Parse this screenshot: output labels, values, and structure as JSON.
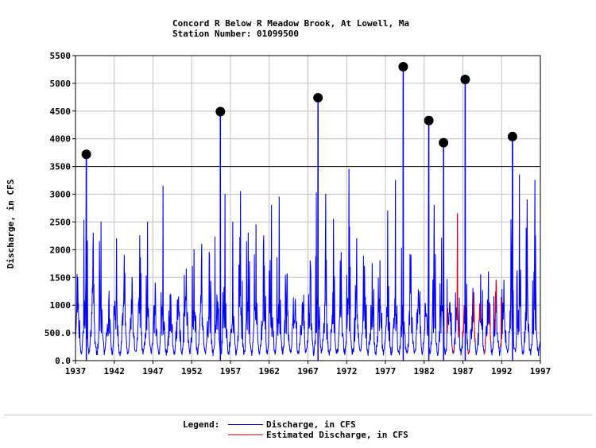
{
  "title": {
    "line1": "Concord R Below R Meadow Brook, At Lowell, Ma",
    "line2": "Station Number: 01099500"
  },
  "chart_data": {
    "type": "line",
    "xlabel": "",
    "ylabel": "Discharge, in CFS",
    "xlim": [
      1937,
      1997
    ],
    "ylim": [
      0,
      5500
    ],
    "x_ticks": [
      "1937",
      "1942",
      "1947",
      "1952",
      "1957",
      "1962",
      "1967",
      "1972",
      "1977",
      "1982",
      "1987",
      "1992",
      "1997"
    ],
    "y_ticks": [
      "0.0",
      "500.0",
      "1000",
      "1500",
      "2000",
      "2500",
      "3000",
      "3500",
      "4000",
      "4500",
      "5000",
      "5500"
    ],
    "grid": true,
    "reference_line": 3500,
    "peaks": [
      {
        "x": 1938.4,
        "y": 3720
      },
      {
        "x": 1955.7,
        "y": 4490
      },
      {
        "x": 1968.3,
        "y": 4740
      },
      {
        "x": 1979.3,
        "y": 5300
      },
      {
        "x": 1982.6,
        "y": 4330
      },
      {
        "x": 1984.5,
        "y": 3930
      },
      {
        "x": 1987.3,
        "y": 5070
      },
      {
        "x": 1993.4,
        "y": 4040
      }
    ],
    "annual_spikes": [
      {
        "x": 1937.3,
        "y": 1500
      },
      {
        "x": 1938.4,
        "y": 3720
      },
      {
        "x": 1939.3,
        "y": 2300
      },
      {
        "x": 1940.3,
        "y": 2500
      },
      {
        "x": 1941.3,
        "y": 1100
      },
      {
        "x": 1942.3,
        "y": 2200
      },
      {
        "x": 1943.3,
        "y": 1900
      },
      {
        "x": 1944.3,
        "y": 1500
      },
      {
        "x": 1945.3,
        "y": 2250
      },
      {
        "x": 1946.3,
        "y": 2500
      },
      {
        "x": 1947.3,
        "y": 1400
      },
      {
        "x": 1948.3,
        "y": 3150
      },
      {
        "x": 1949.3,
        "y": 1200
      },
      {
        "x": 1950.3,
        "y": 1150
      },
      {
        "x": 1951.3,
        "y": 1650
      },
      {
        "x": 1952.3,
        "y": 2000
      },
      {
        "x": 1953.3,
        "y": 2100
      },
      {
        "x": 1954.3,
        "y": 1900
      },
      {
        "x": 1955.7,
        "y": 4490
      },
      {
        "x": 1956.3,
        "y": 3000
      },
      {
        "x": 1957.3,
        "y": 2500
      },
      {
        "x": 1958.3,
        "y": 3050
      },
      {
        "x": 1959.3,
        "y": 2300
      },
      {
        "x": 1960.3,
        "y": 2450
      },
      {
        "x": 1961.3,
        "y": 2250
      },
      {
        "x": 1962.3,
        "y": 2800
      },
      {
        "x": 1963.3,
        "y": 2950
      },
      {
        "x": 1964.3,
        "y": 1550
      },
      {
        "x": 1965.3,
        "y": 700
      },
      {
        "x": 1966.3,
        "y": 1050
      },
      {
        "x": 1967.3,
        "y": 1800
      },
      {
        "x": 1968.3,
        "y": 4740
      },
      {
        "x": 1969.3,
        "y": 3000
      },
      {
        "x": 1970.3,
        "y": 2550
      },
      {
        "x": 1971.3,
        "y": 1950
      },
      {
        "x": 1972.3,
        "y": 3450
      },
      {
        "x": 1973.3,
        "y": 2200
      },
      {
        "x": 1974.3,
        "y": 1700
      },
      {
        "x": 1975.3,
        "y": 1750
      },
      {
        "x": 1976.3,
        "y": 1800
      },
      {
        "x": 1977.3,
        "y": 2700
      },
      {
        "x": 1978.3,
        "y": 3250
      },
      {
        "x": 1979.3,
        "y": 5300
      },
      {
        "x": 1980.3,
        "y": 1900
      },
      {
        "x": 1981.3,
        "y": 1200
      },
      {
        "x": 1982.6,
        "y": 4330
      },
      {
        "x": 1983.3,
        "y": 2800
      },
      {
        "x": 1984.5,
        "y": 3930
      },
      {
        "x": 1985.3,
        "y": 1050
      },
      {
        "x": 1986.3,
        "y": 2650
      },
      {
        "x": 1987.3,
        "y": 5070
      },
      {
        "x": 1988.3,
        "y": 1300
      },
      {
        "x": 1989.3,
        "y": 1550
      },
      {
        "x": 1990.3,
        "y": 1600
      },
      {
        "x": 1991.3,
        "y": 1450
      },
      {
        "x": 1992.3,
        "y": 1450
      },
      {
        "x": 1993.4,
        "y": 4040
      },
      {
        "x": 1994.3,
        "y": 3350
      },
      {
        "x": 1995.3,
        "y": 2900
      },
      {
        "x": 1996.3,
        "y": 3250
      }
    ],
    "series": [
      {
        "name": "Discharge, in CFS",
        "color": "#0000ff"
      },
      {
        "name": "Estimated Discharge, in CFS",
        "color": "#ff0000",
        "x_range": [
          1985.0,
          1992.0
        ]
      }
    ]
  },
  "legend": {
    "label": "Legend:",
    "items": [
      {
        "name": "Discharge, in CFS",
        "color": "#0000ff"
      },
      {
        "name": "Estimated Discharge, in CFS",
        "color": "#ff0000"
      }
    ]
  }
}
